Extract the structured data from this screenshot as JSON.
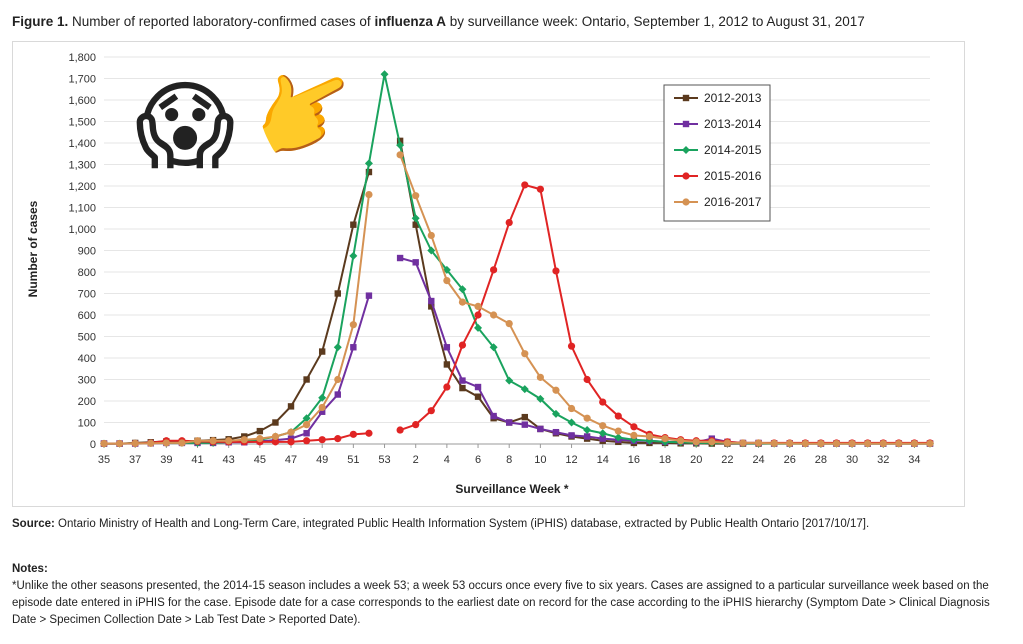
{
  "figure": {
    "label": "Figure 1.",
    "title_pre": "Number of reported laboratory-confirmed cases of",
    "title_bold": "influenza A",
    "title_post": "by surveillance week:  Ontario, September 1, 2012 to August 31, 2017"
  },
  "chart_data": {
    "type": "line",
    "ylabel": "Number of cases",
    "xlabel": "Surveillance Week *",
    "ylim": [
      0,
      1800
    ],
    "y_ticks": [
      "0",
      "100",
      "200",
      "300",
      "400",
      "500",
      "600",
      "700",
      "800",
      "900",
      "1,000",
      "1,100",
      "1,200",
      "1,300",
      "1,400",
      "1,500",
      "1,600",
      "1,700",
      "1,800"
    ],
    "x_positions": [
      "35",
      "36",
      "37",
      "38",
      "39",
      "40",
      "41",
      "42",
      "43",
      "44",
      "45",
      "46",
      "47",
      "48",
      "49",
      "50",
      "51",
      "52",
      "53",
      "1",
      "2",
      "3",
      "4",
      "5",
      "6",
      "7",
      "8",
      "9",
      "10",
      "11",
      "12",
      "13",
      "14",
      "15",
      "16",
      "17",
      "18",
      "19",
      "20",
      "21",
      "22",
      "23",
      "24",
      "25",
      "26",
      "27",
      "28",
      "29",
      "30",
      "31",
      "32",
      "33",
      "34",
      "35"
    ],
    "x_tick_labels": [
      "35",
      "37",
      "39",
      "41",
      "43",
      "45",
      "47",
      "49",
      "51",
      "53",
      "2",
      "4",
      "6",
      "8",
      "10",
      "12",
      "14",
      "16",
      "18",
      "20",
      "22",
      "24",
      "26",
      "28",
      "30",
      "32",
      "34"
    ],
    "legend_position": "top-right",
    "series": [
      {
        "name": "2012-2013",
        "color": "#5b3a1e",
        "marker": "square",
        "values": [
          2,
          2,
          5,
          8,
          12,
          10,
          15,
          18,
          22,
          35,
          60,
          100,
          175,
          300,
          430,
          700,
          1020,
          1265,
          null,
          1410,
          1020,
          640,
          370,
          260,
          220,
          120,
          100,
          125,
          70,
          50,
          35,
          25,
          15,
          10,
          5,
          5,
          5,
          3,
          3,
          2,
          2,
          2,
          2,
          2,
          2,
          2,
          2,
          2,
          2,
          2,
          2,
          2,
          2,
          2
        ]
      },
      {
        "name": "2013-2014",
        "color": "#7030a0",
        "marker": "square",
        "values": [
          2,
          2,
          2,
          3,
          5,
          5,
          5,
          5,
          8,
          8,
          12,
          18,
          25,
          50,
          150,
          230,
          450,
          690,
          null,
          865,
          845,
          665,
          450,
          295,
          265,
          130,
          100,
          90,
          70,
          55,
          40,
          35,
          25,
          20,
          15,
          15,
          10,
          10,
          8,
          25,
          10,
          5,
          5,
          3,
          3,
          2,
          2,
          2,
          2,
          2,
          2,
          2,
          2,
          2
        ]
      },
      {
        "name": "2014-2015",
        "color": "#1aa35e",
        "marker": "diamond",
        "values": [
          2,
          2,
          3,
          5,
          5,
          5,
          5,
          5,
          10,
          15,
          20,
          35,
          55,
          120,
          215,
          450,
          875,
          1305,
          1720,
          1390,
          1050,
          900,
          810,
          720,
          540,
          450,
          295,
          255,
          210,
          140,
          100,
          65,
          50,
          30,
          20,
          15,
          10,
          8,
          5,
          5,
          5,
          3,
          3,
          2,
          2,
          2,
          2,
          2,
          2,
          2,
          2,
          2,
          2,
          2
        ]
      },
      {
        "name": "2015-2016",
        "color": "#e02424",
        "marker": "circle",
        "values": [
          2,
          2,
          3,
          5,
          15,
          15,
          12,
          10,
          10,
          10,
          10,
          10,
          10,
          15,
          20,
          25,
          45,
          50,
          null,
          65,
          90,
          155,
          265,
          460,
          600,
          810,
          1030,
          1205,
          1185,
          805,
          455,
          300,
          195,
          130,
          80,
          45,
          30,
          20,
          15,
          15,
          10,
          5,
          5,
          5,
          5,
          5,
          5,
          5,
          5,
          5,
          5,
          5,
          5,
          5
        ]
      },
      {
        "name": "2016-2017",
        "color": "#d59253",
        "marker": "circle",
        "values": [
          2,
          2,
          3,
          3,
          5,
          5,
          15,
          15,
          15,
          20,
          25,
          35,
          55,
          90,
          170,
          300,
          555,
          1160,
          null,
          1345,
          1155,
          970,
          760,
          660,
          640,
          600,
          560,
          420,
          310,
          250,
          165,
          120,
          85,
          60,
          40,
          35,
          25,
          15,
          10,
          10,
          5,
          5,
          5,
          3,
          3,
          2,
          2,
          2,
          2,
          2,
          2,
          2,
          2,
          2
        ]
      }
    ]
  },
  "source": {
    "label": "Source:",
    "text": "Ontario Ministry of Health and Long-Term Care, integrated Public Health Information System (iPHIS) database, extracted by Public Health Ontario [2017/10/17]."
  },
  "notes": {
    "label": "Notes:",
    "text": "*Unlike the other seasons presented, the 2014-15 season includes a week 53; a week 53 occurs once every five to six years. Cases are assigned to a particular surveillance week based on the episode date entered in iPHIS for the case. Episode date for a case corresponds to the earliest date on record for the case according to the iPHIS hierarchy (Symptom Date > Clinical Diagnosis Date > Specimen Collection Date > Lab Test Date > Reported Date)."
  },
  "overlays": {
    "emoji1": "😱",
    "emoji2": "👉",
    "emoji1_icon": "screaming-face-icon",
    "emoji2_icon": "pointing-hand-icon"
  }
}
